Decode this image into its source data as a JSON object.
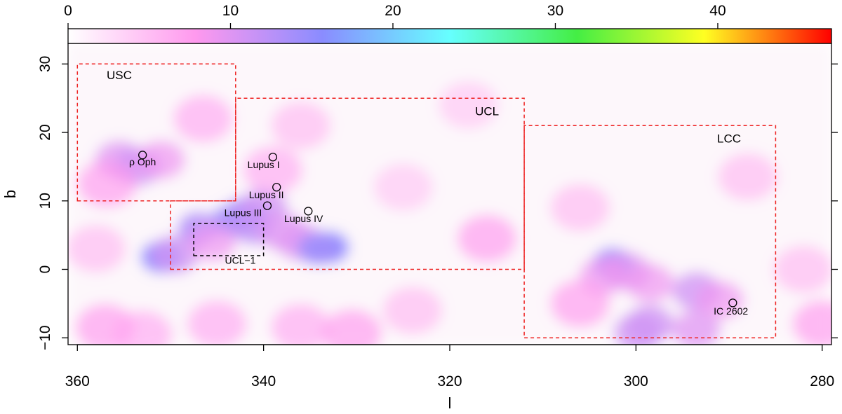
{
  "chart_data": {
    "type": "heatmap",
    "xlabel": "l",
    "ylabel": "b",
    "xlim": [
      361,
      279
    ],
    "ylim": [
      -11,
      33
    ],
    "x_ticks": [
      360,
      340,
      320,
      300,
      280
    ],
    "y_ticks": [
      -10,
      0,
      10,
      20,
      30
    ],
    "x_tick_labels": [
      "360",
      "340",
      "320",
      "300",
      "280"
    ],
    "y_tick_labels": [
      "−10",
      "0",
      "10",
      "20",
      "30"
    ],
    "colorbar": {
      "range": [
        0,
        47
      ],
      "ticks": [
        0,
        10,
        20,
        30,
        40
      ],
      "tick_labels": [
        "0",
        "10",
        "20",
        "30",
        "40"
      ],
      "colors": [
        "#ffffff",
        "#ff99ee",
        "#8a8cff",
        "#66ffff",
        "#44ee44",
        "#ffff22",
        "#ff0000"
      ]
    },
    "regions": [
      {
        "name": "USC",
        "color": "#ee2222",
        "corners": [
          [
            360,
            10
          ],
          [
            343,
            10
          ],
          [
            343,
            30
          ],
          [
            360,
            30
          ]
        ],
        "label_pos": [
          355.5,
          27.8
        ]
      },
      {
        "name": "UCL",
        "color": "#ee2222",
        "corners": [
          [
            350,
            0
          ],
          [
            312,
            0
          ],
          [
            312,
            25
          ],
          [
            343,
            25
          ],
          [
            343,
            10
          ],
          [
            350,
            10
          ]
        ],
        "label_pos": [
          316,
          22.5
        ]
      },
      {
        "name": "LCC",
        "color": "#ee2222",
        "corners": [
          [
            312,
            -10
          ],
          [
            285,
            -10
          ],
          [
            285,
            21
          ],
          [
            312,
            21
          ]
        ],
        "label_pos": [
          290,
          18.5
        ]
      },
      {
        "name": "UCL−1",
        "color": "#000000",
        "corners": [
          [
            347.5,
            2
          ],
          [
            340,
            2
          ],
          [
            340,
            6.7
          ],
          [
            347.5,
            6.7
          ]
        ],
        "label_pos": [
          342.5,
          0.8
        ]
      }
    ],
    "objects": [
      {
        "name": "ρ Oph",
        "l": 353,
        "b": 16.7,
        "label_l": 353,
        "label_b": 15.2
      },
      {
        "name": "Lupus I",
        "l": 339,
        "b": 16.4,
        "label_l": 340,
        "label_b": 14.8
      },
      {
        "name": "Lupus II",
        "l": 338.6,
        "b": 12,
        "label_l": 339.7,
        "label_b": 10.4
      },
      {
        "name": "Lupus III",
        "l": 339.6,
        "b": 9.3,
        "label_l": 342.2,
        "label_b": 7.8
      },
      {
        "name": "Lupus IV",
        "l": 335.2,
        "b": 8.5,
        "label_l": 335.7,
        "label_b": 6.9
      },
      {
        "name": "IC 2602",
        "l": 289.6,
        "b": -4.9,
        "label_l": 289.8,
        "label_b": -6.6
      }
    ],
    "density_peaks": [
      {
        "l": 351,
        "b": 1.8,
        "value": 15
      },
      {
        "l": 349.5,
        "b": 2.2,
        "value": 11
      },
      {
        "l": 347,
        "b": 6,
        "value": 13
      },
      {
        "l": 343.5,
        "b": 7,
        "value": 14
      },
      {
        "l": 342,
        "b": 8.2,
        "value": 13
      },
      {
        "l": 340,
        "b": 9,
        "value": 11
      },
      {
        "l": 341,
        "b": 6,
        "value": 12
      },
      {
        "l": 338,
        "b": 5.5,
        "value": 10
      },
      {
        "l": 336,
        "b": 4,
        "value": 10
      },
      {
        "l": 333,
        "b": 3.2,
        "value": 15
      },
      {
        "l": 334.2,
        "b": 3,
        "value": 14
      },
      {
        "l": 345.5,
        "b": 4,
        "value": 9
      },
      {
        "l": 355.5,
        "b": 16,
        "value": 10
      },
      {
        "l": 353.5,
        "b": 15,
        "value": 11
      },
      {
        "l": 351,
        "b": 16,
        "value": 9
      },
      {
        "l": 356.8,
        "b": 12.5,
        "value": 8
      },
      {
        "l": 346.5,
        "b": 22,
        "value": 7
      },
      {
        "l": 339,
        "b": 14.5,
        "value": 7
      },
      {
        "l": 336,
        "b": 21,
        "value": 6
      },
      {
        "l": 316,
        "b": 4.5,
        "value": 8
      },
      {
        "l": 302.5,
        "b": 0.8,
        "value": 14
      },
      {
        "l": 301,
        "b": -0.3,
        "value": 10
      },
      {
        "l": 303.5,
        "b": -1,
        "value": 9
      },
      {
        "l": 298.5,
        "b": -2,
        "value": 9
      },
      {
        "l": 293.5,
        "b": -3.2,
        "value": 11
      },
      {
        "l": 291,
        "b": -4.5,
        "value": 9
      },
      {
        "l": 298.5,
        "b": -8,
        "value": 11
      },
      {
        "l": 293.5,
        "b": -8.8,
        "value": 10
      },
      {
        "l": 299.8,
        "b": -9.2,
        "value": 11
      },
      {
        "l": 306,
        "b": -5,
        "value": 8
      },
      {
        "l": 288,
        "b": 13.5,
        "value": 6
      },
      {
        "l": 306,
        "b": 9,
        "value": 6
      },
      {
        "l": 357,
        "b": -8.5,
        "value": 8
      },
      {
        "l": 353,
        "b": -9.5,
        "value": 7
      },
      {
        "l": 345,
        "b": -8,
        "value": 7
      },
      {
        "l": 336,
        "b": -8.5,
        "value": 7
      },
      {
        "l": 330.5,
        "b": -9.3,
        "value": 8
      },
      {
        "l": 324,
        "b": -6,
        "value": 6
      },
      {
        "l": 280,
        "b": -8,
        "value": 8
      },
      {
        "l": 282,
        "b": 0,
        "value": 6
      },
      {
        "l": 325,
        "b": 12,
        "value": 5
      },
      {
        "l": 318,
        "b": 24,
        "value": 5
      },
      {
        "l": 358,
        "b": 3,
        "value": 6
      }
    ]
  }
}
